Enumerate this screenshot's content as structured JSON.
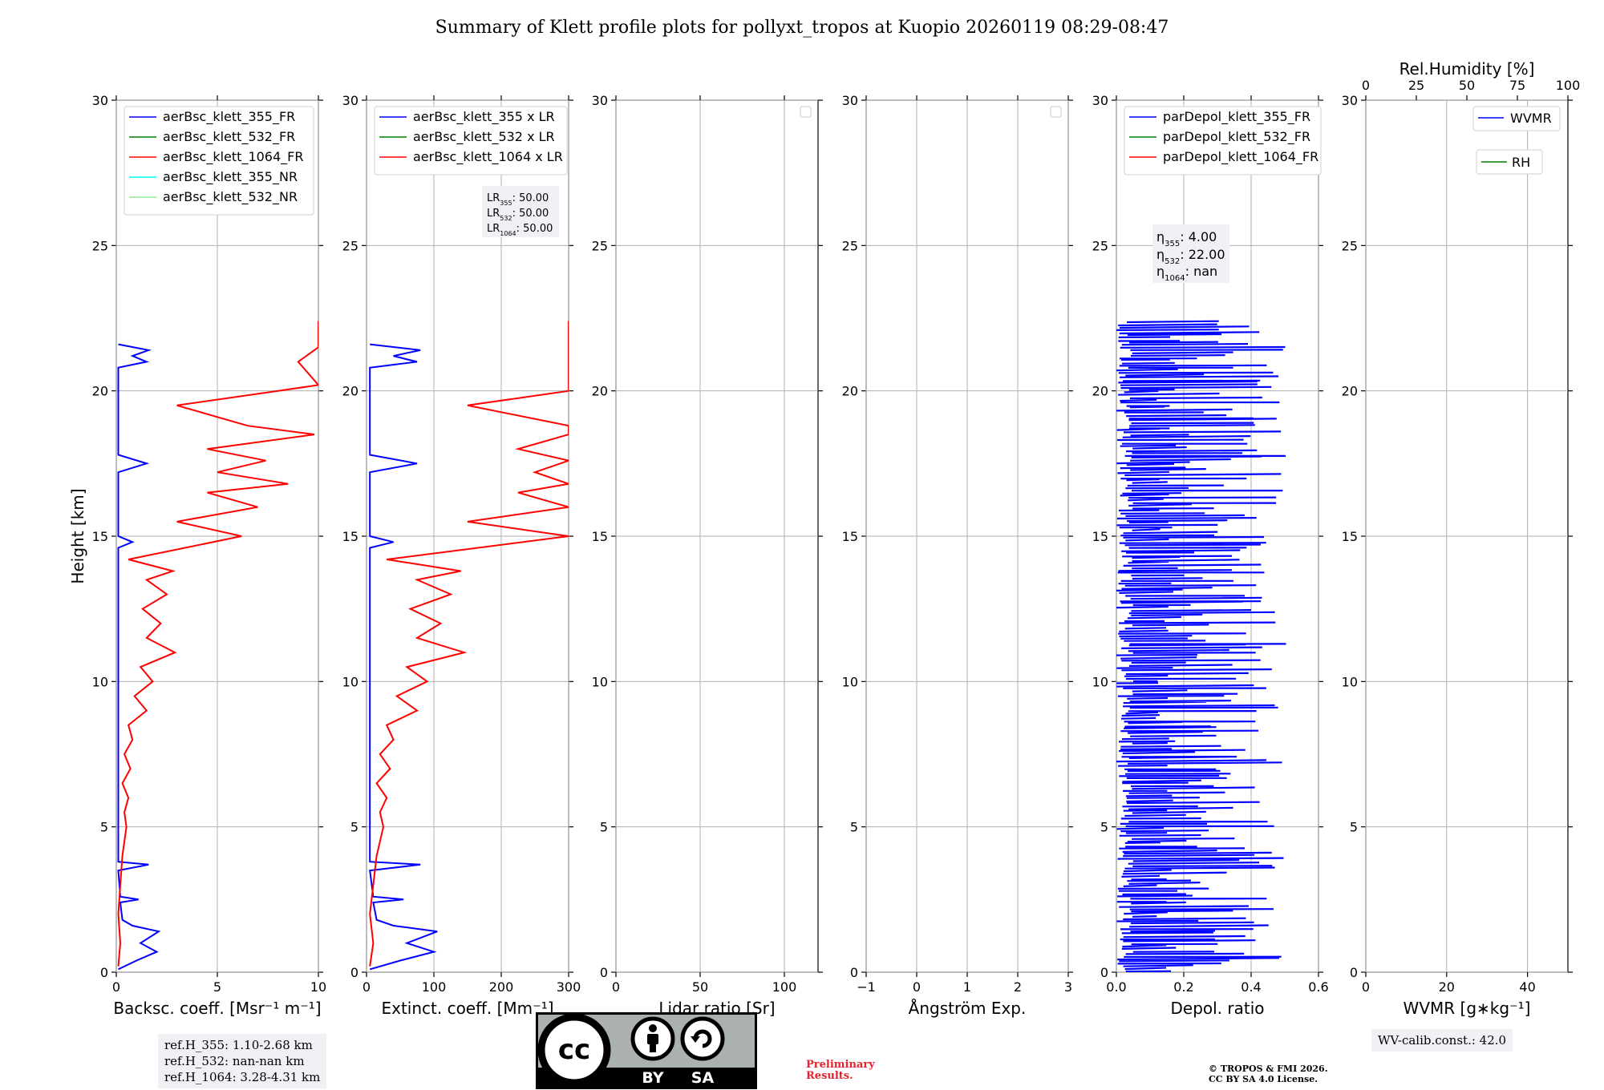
{
  "title": "Summary of Klett profile plots for pollyxt_tropos at Kuopio 20260119 08:29-08:47",
  "chart_data": [
    {
      "type": "line",
      "name": "backscatter",
      "xlabel": "Backsc. coeff. [Msr⁻¹ m⁻¹]",
      "ylabel": "Height [km]",
      "xlim": [
        0,
        10
      ],
      "ylim": [
        0,
        30
      ],
      "xticks": [
        "0",
        "5",
        "10"
      ],
      "yticks": [
        "0",
        "5",
        "10",
        "15",
        "20",
        "25",
        "30"
      ],
      "legend": [
        "aerBsc_klett_355_FR",
        "aerBsc_klett_532_FR",
        "aerBsc_klett_1064_FR",
        "aerBsc_klett_355_NR",
        "aerBsc_klett_532_NR"
      ],
      "series_colors": [
        "#0000ff",
        "#008000",
        "#ff0000",
        "#00ffff",
        "#90ee90"
      ],
      "series": [
        {
          "name": "aerBsc_klett_355_FR",
          "points": [
            [
              0.1,
              0.1
            ],
            [
              1.0,
              0.4
            ],
            [
              2.0,
              0.7
            ],
            [
              1.2,
              1.0
            ],
            [
              2.1,
              1.4
            ],
            [
              0.8,
              1.6
            ],
            [
              0.3,
              1.8
            ],
            [
              0.2,
              2.4
            ],
            [
              1.1,
              2.5
            ],
            [
              0.2,
              2.6
            ],
            [
              0.1,
              3.5
            ],
            [
              1.6,
              3.7
            ],
            [
              0.1,
              3.8
            ],
            [
              0.1,
              14.6
            ],
            [
              0.8,
              14.8
            ],
            [
              0.1,
              15.0
            ],
            [
              0.1,
              17.2
            ],
            [
              1.5,
              17.5
            ],
            [
              0.1,
              17.8
            ],
            [
              0.1,
              20.8
            ],
            [
              1.5,
              21.0
            ],
            [
              0.8,
              21.2
            ],
            [
              1.6,
              21.4
            ],
            [
              0.1,
              21.6
            ]
          ]
        },
        {
          "name": "aerBsc_klett_1064_FR",
          "points": [
            [
              0.1,
              0.2
            ],
            [
              0.2,
              1.0
            ],
            [
              0.1,
              2.0
            ],
            [
              0.2,
              3.0
            ],
            [
              0.3,
              4.0
            ],
            [
              0.5,
              5.0
            ],
            [
              0.4,
              5.5
            ],
            [
              0.6,
              6.0
            ],
            [
              0.3,
              6.5
            ],
            [
              0.7,
              7.0
            ],
            [
              0.4,
              7.5
            ],
            [
              0.8,
              8.0
            ],
            [
              0.6,
              8.5
            ],
            [
              1.5,
              9.0
            ],
            [
              0.9,
              9.5
            ],
            [
              1.8,
              10.0
            ],
            [
              1.2,
              10.5
            ],
            [
              2.9,
              11.0
            ],
            [
              1.5,
              11.5
            ],
            [
              2.2,
              12.0
            ],
            [
              1.3,
              12.5
            ],
            [
              2.5,
              13.0
            ],
            [
              1.5,
              13.5
            ],
            [
              2.8,
              13.8
            ],
            [
              0.6,
              14.2
            ],
            [
              6.2,
              15.0
            ],
            [
              3.0,
              15.5
            ],
            [
              7.0,
              16.0
            ],
            [
              4.5,
              16.5
            ],
            [
              8.5,
              16.8
            ],
            [
              5.0,
              17.2
            ],
            [
              7.4,
              17.6
            ],
            [
              4.5,
              18.0
            ],
            [
              9.8,
              18.5
            ],
            [
              6.5,
              18.8
            ],
            [
              3.0,
              19.5
            ],
            [
              8.0,
              20.0
            ],
            [
              10.0,
              20.2
            ],
            [
              9.0,
              21.0
            ],
            [
              10.0,
              21.5
            ],
            [
              10.0,
              22.0
            ],
            [
              10.0,
              22.4
            ]
          ]
        }
      ]
    },
    {
      "type": "line",
      "name": "extinction",
      "xlabel": "Extinct. coeff. [Mm⁻¹]",
      "xlim": [
        0,
        300
      ],
      "ylim": [
        0,
        30
      ],
      "xticks": [
        "0",
        "100",
        "200",
        "300"
      ],
      "yticks": [
        "0",
        "5",
        "10",
        "15",
        "20",
        "25",
        "30"
      ],
      "legend": [
        "aerBsc_klett_355 x LR",
        "aerBsc_klett_532 x LR",
        "aerBsc_klett_1064 x LR"
      ],
      "series_colors": [
        "#0000ff",
        "#008000",
        "#ff0000"
      ],
      "annotation": {
        "LR355": "50.00",
        "LR532": "50.00",
        "LR1064": "50.00"
      },
      "series": [
        {
          "name": "aerBsc_klett_355 x LR",
          "points": [
            [
              5,
              0.1
            ],
            [
              50,
              0.4
            ],
            [
              100,
              0.7
            ],
            [
              60,
              1.0
            ],
            [
              105,
              1.4
            ],
            [
              40,
              1.6
            ],
            [
              15,
              1.8
            ],
            [
              10,
              2.4
            ],
            [
              55,
              2.5
            ],
            [
              10,
              2.6
            ],
            [
              5,
              3.5
            ],
            [
              80,
              3.7
            ],
            [
              5,
              3.8
            ],
            [
              5,
              14.6
            ],
            [
              40,
              14.8
            ],
            [
              5,
              15.0
            ],
            [
              5,
              17.2
            ],
            [
              75,
              17.5
            ],
            [
              5,
              17.8
            ],
            [
              5,
              20.8
            ],
            [
              75,
              21.0
            ],
            [
              40,
              21.2
            ],
            [
              80,
              21.4
            ],
            [
              5,
              21.6
            ]
          ]
        },
        {
          "name": "aerBsc_klett_1064 x LR",
          "points": [
            [
              5,
              0.2
            ],
            [
              10,
              1.0
            ],
            [
              5,
              2.0
            ],
            [
              10,
              3.0
            ],
            [
              15,
              4.0
            ],
            [
              25,
              5.0
            ],
            [
              20,
              5.5
            ],
            [
              30,
              6.0
            ],
            [
              15,
              6.5
            ],
            [
              35,
              7.0
            ],
            [
              20,
              7.5
            ],
            [
              40,
              8.0
            ],
            [
              30,
              8.5
            ],
            [
              75,
              9.0
            ],
            [
              45,
              9.5
            ],
            [
              90,
              10.0
            ],
            [
              60,
              10.5
            ],
            [
              145,
              11.0
            ],
            [
              75,
              11.5
            ],
            [
              110,
              12.0
            ],
            [
              65,
              12.5
            ],
            [
              125,
              13.0
            ],
            [
              75,
              13.5
            ],
            [
              140,
              13.8
            ],
            [
              30,
              14.2
            ],
            [
              300,
              15.0
            ],
            [
              150,
              15.5
            ],
            [
              300,
              16.0
            ],
            [
              225,
              16.5
            ],
            [
              300,
              16.8
            ],
            [
              250,
              17.2
            ],
            [
              300,
              17.6
            ],
            [
              225,
              18.0
            ],
            [
              300,
              18.5
            ],
            [
              300,
              18.8
            ],
            [
              150,
              19.5
            ],
            [
              300,
              20.0
            ],
            [
              300,
              20.2
            ],
            [
              300,
              21.0
            ],
            [
              300,
              21.5
            ],
            [
              300,
              22.0
            ],
            [
              300,
              22.4
            ]
          ]
        }
      ]
    },
    {
      "type": "line",
      "name": "lidar-ratio",
      "xlabel": "Lidar ratio [Sr]",
      "xlim": [
        0,
        120
      ],
      "ylim": [
        0,
        30
      ],
      "xticks": [
        "0",
        "50",
        "100"
      ],
      "yticks": [
        "0",
        "5",
        "10",
        "15",
        "20",
        "25",
        "30"
      ],
      "series": []
    },
    {
      "type": "line",
      "name": "angstrom",
      "xlabel": "Ångström Exp.",
      "xlim": [
        -1,
        3
      ],
      "ylim": [
        0,
        30
      ],
      "xticks": [
        "−1",
        "0",
        "1",
        "2",
        "3"
      ],
      "yticks": [
        "0",
        "5",
        "10",
        "15",
        "20",
        "25",
        "30"
      ],
      "series": []
    },
    {
      "type": "line",
      "name": "depolarization",
      "xlabel": "Depol. ratio",
      "xlim": [
        0,
        0.6
      ],
      "ylim": [
        0,
        30
      ],
      "xticks": [
        "0.0",
        "0.2",
        "0.4",
        "0.6"
      ],
      "yticks": [
        "0",
        "5",
        "10",
        "15",
        "20",
        "25",
        "30"
      ],
      "legend": [
        "parDepol_klett_355_FR",
        "parDepol_klett_532_FR",
        "parDepol_klett_1064_FR"
      ],
      "series_colors": [
        "#0000ff",
        "#008000",
        "#ff0000"
      ],
      "annotation": {
        "eta355": "4.00",
        "eta532": "22.00",
        "eta1064": "nan"
      },
      "series": [
        {
          "name": "parDepol_klett_355_FR",
          "band": [
            0,
            0.6
          ],
          "y_range": [
            0,
            22.4
          ]
        }
      ]
    },
    {
      "type": "line",
      "name": "wvmr",
      "xlabel": "WVMR [g∗kg⁻¹]",
      "top_xlabel": "Rel.Humidity [%]",
      "xlim": [
        0,
        50
      ],
      "ylim": [
        0,
        30
      ],
      "xticks": [
        "0",
        "20",
        "40"
      ],
      "top_xticks": [
        "0",
        "25",
        "50",
        "75",
        "100"
      ],
      "yticks": [
        "0",
        "5",
        "10",
        "15",
        "20",
        "25",
        "30"
      ],
      "legend": [
        "WVMR",
        "RH"
      ],
      "series_colors": [
        "#0000ff",
        "#008000"
      ],
      "series": []
    }
  ],
  "info": {
    "ref_lines": [
      "ref.H_355: 1.10-2.68 km",
      "ref.H_532: nan-nan km",
      "ref.H_1064: 3.28-4.31 km"
    ],
    "wv_calib": "WV-calib.const.: 42.0",
    "preliminary_lines": [
      "Preliminary",
      "Results."
    ],
    "copyright_lines": [
      "© TROPOS & FMI 2026.",
      "CC BY SA 4.0 License."
    ],
    "cc_label_by": "BY",
    "cc_label_sa": "SA",
    "cc_label_cc": "cc"
  }
}
